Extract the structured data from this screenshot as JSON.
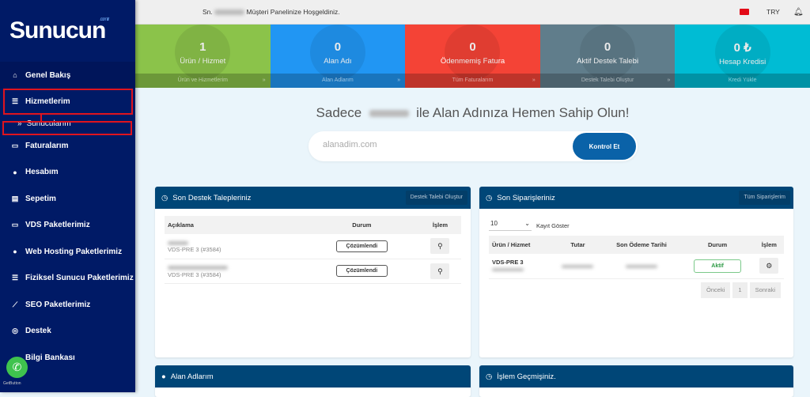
{
  "brand": {
    "name": "Sunucun",
    "tld": ".com.tr"
  },
  "topbar": {
    "greeting_prefix": "Sn.",
    "greeting": "Müşteri Panelinize Hoşgeldiniz.",
    "currency": "TRY",
    "icons": [
      "turkey-flag-icon",
      "bell-icon"
    ]
  },
  "sidebar": {
    "items": [
      {
        "label": "Genel Bakış",
        "icon": "home-icon"
      },
      {
        "label": "Hizmetlerim",
        "icon": "list-icon"
      },
      {
        "label": "Faturalarım",
        "icon": "credit-card-icon"
      },
      {
        "label": "Hesabım",
        "icon": "user-icon"
      },
      {
        "label": "Sepetim",
        "icon": "basket-icon"
      },
      {
        "label": "VDS Paketlerimiz",
        "icon": "monitor-icon"
      },
      {
        "label": "Web Hosting Paketlerimiz",
        "icon": "globe-icon"
      },
      {
        "label": "Fiziksel Sunucu Paketlerimiz",
        "icon": "server-icon"
      },
      {
        "label": "SEO Paketlerimiz",
        "icon": "chart-icon"
      },
      {
        "label": "Destek",
        "icon": "lifebuoy-icon"
      },
      {
        "label": "Bilgi Bankası",
        "icon": "book-icon"
      }
    ],
    "sub_item": "Sunucularım",
    "highlight_color": "#e0141e"
  },
  "tiles": [
    {
      "value": "1",
      "label": "Ürün / Hizmet",
      "link": "Ürün ve Hizmetlerim",
      "color": "#8bc34a",
      "icon": "rocket-icon"
    },
    {
      "value": "0",
      "label": "Alan Adı",
      "link": "Alan Adlarım",
      "color": "#2196f3",
      "icon": "globe-icon"
    },
    {
      "value": "0",
      "label": "Ödenmemiş Fatura",
      "link": "Tüm Faturalarım",
      "color": "#f44336",
      "icon": "document-icon"
    },
    {
      "value": "0",
      "label": "Aktif Destek Talebi",
      "link": "Destek Talebi Oluştur",
      "color": "#607d8b",
      "icon": "lifebuoy-icon"
    },
    {
      "value": "0 ₺",
      "label": "Hesap Kredisi",
      "link": "Kredi Yükle",
      "color": "#00bcd4",
      "icon": "bank-icon"
    }
  ],
  "promo": {
    "prefix": "Sadece",
    "suffix": "ile Alan Adınıza Hemen Sahip Olun!",
    "placeholder": "alanadim.com",
    "button": "Kontrol Et"
  },
  "tickets": {
    "title": "Son Destek Talepleriniz",
    "button": "Destek Talebi Oluştur",
    "columns": [
      "Açıklama",
      "Durum",
      "İşlem"
    ],
    "rows": [
      {
        "service": "VDS-PRE 3 (#3584)",
        "status": "Çözümlendi"
      },
      {
        "service": "VDS-PRE 3 (#3584)",
        "status": "Çözümlendi"
      }
    ]
  },
  "orders": {
    "title": "Son Siparişleriniz",
    "button": "Tüm Siparişlerim",
    "page_size": "10",
    "page_size_label": "Kayıt Göster",
    "columns": [
      "Ürün / Hizmet",
      "Tutar",
      "Son Ödeme Tarihi",
      "Durum",
      "İşlem"
    ],
    "rows": [
      {
        "product": "VDS-PRE 3",
        "status": "Aktif"
      }
    ],
    "pager": {
      "prev": "Önceki",
      "page": "1",
      "next": "Sonraki"
    }
  },
  "domains_panel": {
    "title": "Alan Adlarım"
  },
  "history_panel": {
    "title": "İşlem Geçmişiniz."
  },
  "widget": {
    "label": "GetButton",
    "icon": "whatsapp-icon"
  }
}
